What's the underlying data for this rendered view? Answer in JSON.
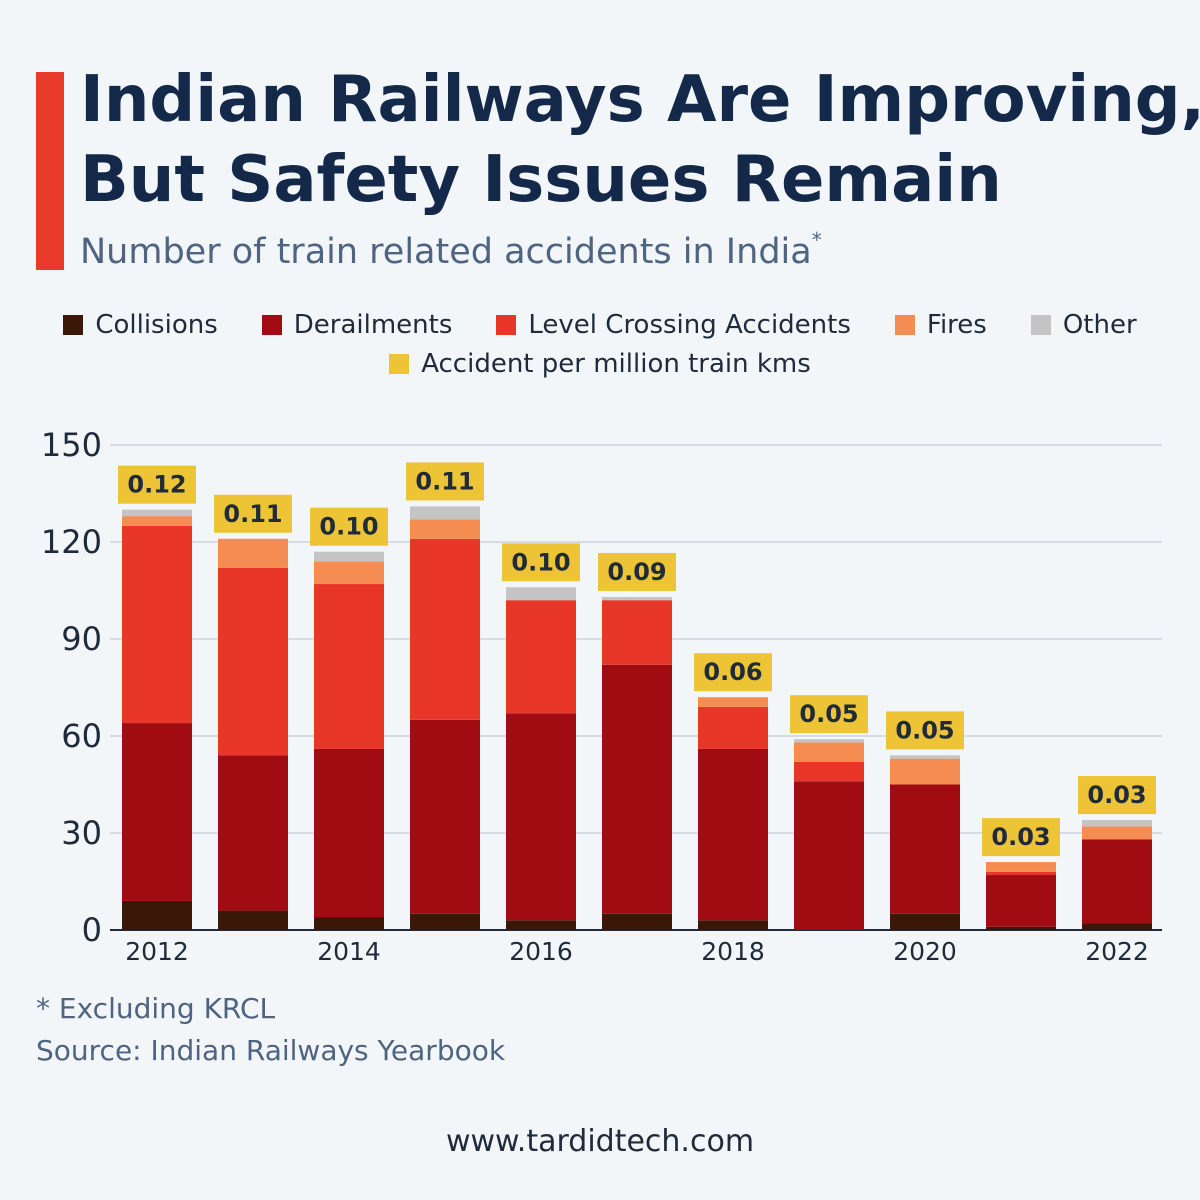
{
  "header": {
    "title_line1": "Indian Railways Are Improving,",
    "title_line2": "But Safety Issues Remain",
    "subtitle": "Number of train related accidents in India",
    "subtitle_marker": "*"
  },
  "legend": {
    "collisions": "Collisions",
    "derailments": "Derailments",
    "level_crossing": "Level Crossing Accidents",
    "fires": "Fires",
    "other": "Other",
    "rate": "Accident per million train kms"
  },
  "colors": {
    "collisions": "#3b1708",
    "derailments": "#a10b12",
    "level_crossing": "#e83628",
    "fires": "#f58c52",
    "other": "#c4c4c4",
    "rate_label": "#ecc435",
    "accent": "#e83a2a"
  },
  "chart_data": {
    "type": "bar",
    "stacked": true,
    "categories": [
      "2012",
      "2013",
      "2014",
      "2015",
      "2016",
      "2017",
      "2018",
      "2019",
      "2020",
      "2021",
      "2022"
    ],
    "x_tick_labels": [
      "2012",
      "2014",
      "2016",
      "2018",
      "2020",
      "2022"
    ],
    "ylim": [
      0,
      150
    ],
    "y_ticks": [
      0,
      30,
      60,
      90,
      120,
      150
    ],
    "grid": true,
    "series": [
      {
        "name": "Collisions",
        "key": "collisions",
        "values": [
          9,
          6,
          4,
          5,
          3,
          5,
          3,
          0,
          5,
          1,
          2
        ]
      },
      {
        "name": "Derailments",
        "key": "derailments",
        "values": [
          55,
          48,
          52,
          60,
          64,
          77,
          53,
          46,
          40,
          16,
          26
        ]
      },
      {
        "name": "Level Crossing Accidents",
        "key": "level_crossing",
        "values": [
          61,
          58,
          51,
          56,
          35,
          20,
          13,
          6,
          0,
          1,
          0
        ]
      },
      {
        "name": "Fires",
        "key": "fires",
        "values": [
          3,
          9,
          7,
          6,
          0,
          0,
          3,
          6,
          8,
          3,
          4
        ]
      },
      {
        "name": "Other",
        "key": "other",
        "values": [
          2,
          0,
          3,
          4,
          4,
          1,
          0,
          1,
          1,
          0,
          2
        ]
      }
    ],
    "accident_per_million_train_kms": [
      "0.12",
      "0.11",
      "0.10",
      "0.11",
      "0.10",
      "0.09",
      "0.06",
      "0.05",
      "0.05",
      "0.03",
      "0.03"
    ]
  },
  "footnotes": {
    "note": "* Excluding KRCL",
    "source": "Source: Indian Railways Yearbook"
  },
  "website": "www.tardidtech.com"
}
